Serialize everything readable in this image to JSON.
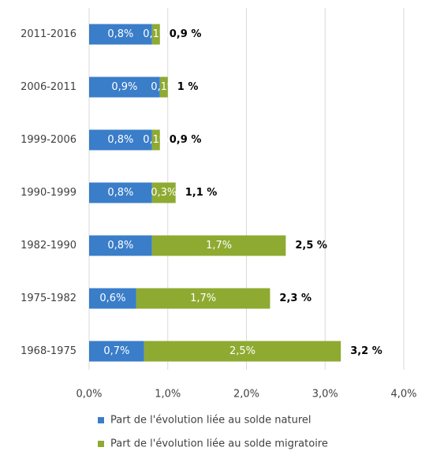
{
  "chart_data": {
    "type": "stacked-barh",
    "categories": [
      "2011-2016",
      "2006-2011",
      "1999-2006",
      "1990-1999",
      "1982-1990",
      "1975-1982",
      "1968-1975"
    ],
    "series": [
      {
        "name": "Part de l'évolution liée au solde naturel",
        "color": "#3a7dc9",
        "values": [
          0.8,
          0.9,
          0.8,
          0.8,
          0.8,
          0.6,
          0.7
        ],
        "value_labels": [
          "0,8%",
          "0,9%",
          "0,8%",
          "0,8%",
          "0,8%",
          "0,6%",
          "0,7%"
        ]
      },
      {
        "name": "Part de l'évolution liée au solde migratoire",
        "color": "#8faa31",
        "values": [
          0.1,
          0.1,
          0.1,
          0.3,
          1.7,
          1.7,
          2.5
        ],
        "value_labels": [
          "0,1%",
          "0,1%",
          "0,1%",
          "0,3%",
          "1,7%",
          "1,7%",
          "2,5%"
        ]
      }
    ],
    "totals": {
      "values": [
        0.9,
        1,
        0.9,
        1.1,
        2.5,
        2.3,
        3.2
      ],
      "value_labels": [
        "0,9 %",
        "1 %",
        "0,9 %",
        "1,1 %",
        "2,5 %",
        "2,3 %",
        "3,2 %"
      ]
    },
    "xlim": [
      0,
      4
    ],
    "xticks": [
      {
        "value": 0,
        "label": "0,0%"
      },
      {
        "value": 1,
        "label": "1,0%"
      },
      {
        "value": 2,
        "label": "2,0%"
      },
      {
        "value": 3,
        "label": "3,0%"
      },
      {
        "value": 4,
        "label": "4,0%"
      }
    ],
    "grid": true,
    "legend": "bottom"
  }
}
